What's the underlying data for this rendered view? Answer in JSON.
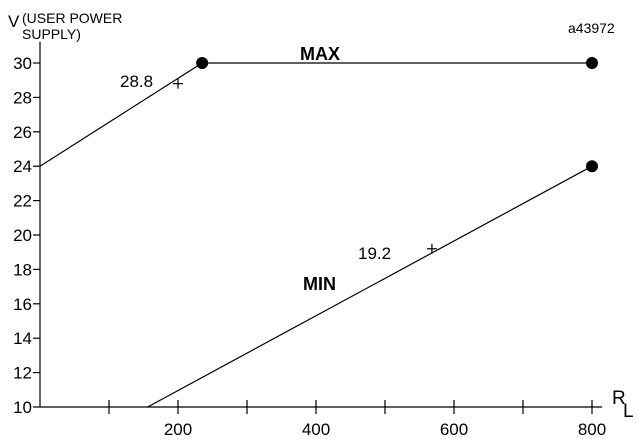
{
  "chart_data": {
    "type": "line",
    "figure_code": "a43972",
    "ylabel": "V",
    "ylabel_note": "(USER POWER",
    "ylabel_note2": "SUPPLY)",
    "xlabel_main": "R",
    "xlabel_sub": "L",
    "xlim": [
      0,
      820
    ],
    "ylim": [
      10,
      31
    ],
    "xticks": [
      100,
      200,
      300,
      400,
      500,
      600,
      700,
      800
    ],
    "xtick_labels": [
      "200",
      "400",
      "600",
      "800"
    ],
    "xtick_label_values": [
      200,
      400,
      600,
      800
    ],
    "yticks": [
      10,
      12,
      14,
      16,
      18,
      20,
      22,
      24,
      26,
      28,
      30
    ],
    "ytick_labels": [
      "10",
      "12",
      "14",
      "16",
      "18",
      "20",
      "22",
      "24",
      "26",
      "28",
      "30"
    ],
    "grid": false,
    "series": [
      {
        "name": "MAX",
        "x": [
          0,
          235,
          800
        ],
        "y": [
          24,
          30,
          30
        ],
        "markers": [
          [
            235,
            30
          ],
          [
            800,
            30
          ]
        ]
      },
      {
        "name": "MIN",
        "x": [
          156,
          800
        ],
        "y": [
          10,
          24
        ],
        "markers": [
          [
            800,
            24
          ]
        ]
      }
    ],
    "annotations": [
      {
        "text": "28.8",
        "x": 200,
        "y": 28.8,
        "series": "MAX"
      },
      {
        "text": "19.2",
        "x": 568,
        "y": 19.2,
        "series": "MIN"
      }
    ]
  }
}
